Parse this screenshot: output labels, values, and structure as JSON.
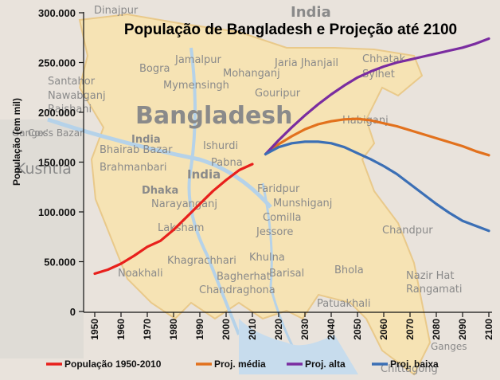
{
  "chart_data": {
    "type": "line",
    "title": "População de Bangladesh e Projeção até 2100",
    "ylabel": "População (em mil)",
    "xlabel": "",
    "xlim": [
      1950,
      2100
    ],
    "ylim": [
      0,
      300000
    ],
    "grid": false,
    "legend_position": "bottom",
    "y_ticks": [
      "0",
      "50.000",
      "100.000",
      "150.000",
      "200.000",
      "250.000",
      "300.000"
    ],
    "y_tick_values": [
      0,
      50000,
      100000,
      150000,
      200000,
      250000,
      300000
    ],
    "x_ticks": [
      "1950",
      "1960",
      "1970",
      "1980",
      "1990",
      "2000",
      "2010",
      "2020",
      "2030",
      "2040",
      "2050",
      "2060",
      "2070",
      "2080",
      "2090",
      "2100"
    ],
    "x_tick_values": [
      1950,
      1960,
      1970,
      1980,
      1990,
      2000,
      2010,
      2020,
      2030,
      2040,
      2050,
      2060,
      2070,
      2080,
      2090,
      2100
    ],
    "series": [
      {
        "name": "População 1950-2010",
        "color": "#e8201c",
        "x": [
          1950,
          1955,
          1960,
          1965,
          1970,
          1975,
          1980,
          1985,
          1990,
          1995,
          2000,
          2005,
          2010
        ],
        "y": [
          38000,
          42000,
          48000,
          56000,
          65000,
          71000,
          82000,
          95000,
          108000,
          121000,
          132000,
          142000,
          148000
        ]
      },
      {
        "name": "Proj. média",
        "color": "#e2711d",
        "x": [
          2015,
          2020,
          2025,
          2030,
          2035,
          2040,
          2045,
          2050,
          2055,
          2060,
          2065,
          2070,
          2075,
          2080,
          2085,
          2090,
          2095,
          2100
        ],
        "y": [
          158000,
          168000,
          176000,
          183000,
          188000,
          191000,
          193000,
          193500,
          192000,
          189000,
          186000,
          182000,
          178000,
          174000,
          170000,
          166000,
          161000,
          157000
        ]
      },
      {
        "name": "Proj. alta",
        "color": "#7a2ca0",
        "x": [
          2015,
          2020,
          2025,
          2030,
          2035,
          2040,
          2045,
          2050,
          2055,
          2060,
          2065,
          2070,
          2075,
          2080,
          2085,
          2090,
          2095,
          2100
        ],
        "y": [
          158000,
          172000,
          185000,
          197000,
          208000,
          218000,
          227000,
          235000,
          241000,
          246000,
          250000,
          253000,
          256000,
          259000,
          262000,
          265000,
          269000,
          274000
        ]
      },
      {
        "name": "Proj. baixa",
        "color": "#3b6fb5",
        "x": [
          2015,
          2020,
          2025,
          2030,
          2035,
          2040,
          2045,
          2050,
          2055,
          2060,
          2065,
          2070,
          2075,
          2080,
          2085,
          2090,
          2095,
          2100
        ],
        "y": [
          158000,
          165000,
          169000,
          170500,
          170500,
          169000,
          165000,
          159000,
          153000,
          146000,
          138000,
          128000,
          118000,
          108000,
          99000,
          91000,
          86000,
          81000
        ]
      }
    ]
  },
  "background_map": {
    "labels": [
      "Dinajpur",
      "India",
      "Jamalpur",
      "Jaria Jhanjail",
      "Chhatak",
      "Bogra",
      "Mohanganj",
      "Sylhet",
      "Santahor",
      "Mymensingh",
      "Nawabganj",
      "Gouripur",
      "Rajshahi",
      "Bangladesh",
      "Ganges",
      "Habiganj",
      "India",
      "Ishurdi",
      "Bhairab Bazar",
      "Pabna",
      "Brahmanbari",
      "Kushtia",
      "India",
      "Dhaka",
      "Faridpur",
      "Narayanganj",
      "Munshiganj",
      "Comilla",
      "Laksham",
      "Jessore",
      "Chandpur",
      "Khagrachhari",
      "Khulna",
      "Noakhali",
      "Bagherhat",
      "Barisal",
      "Bhola",
      "Nazir Hat",
      "Rangamati",
      "Chandraghona",
      "Patuakhali",
      "Chittagong",
      "Cox's Bazar",
      "Ganges"
    ]
  }
}
